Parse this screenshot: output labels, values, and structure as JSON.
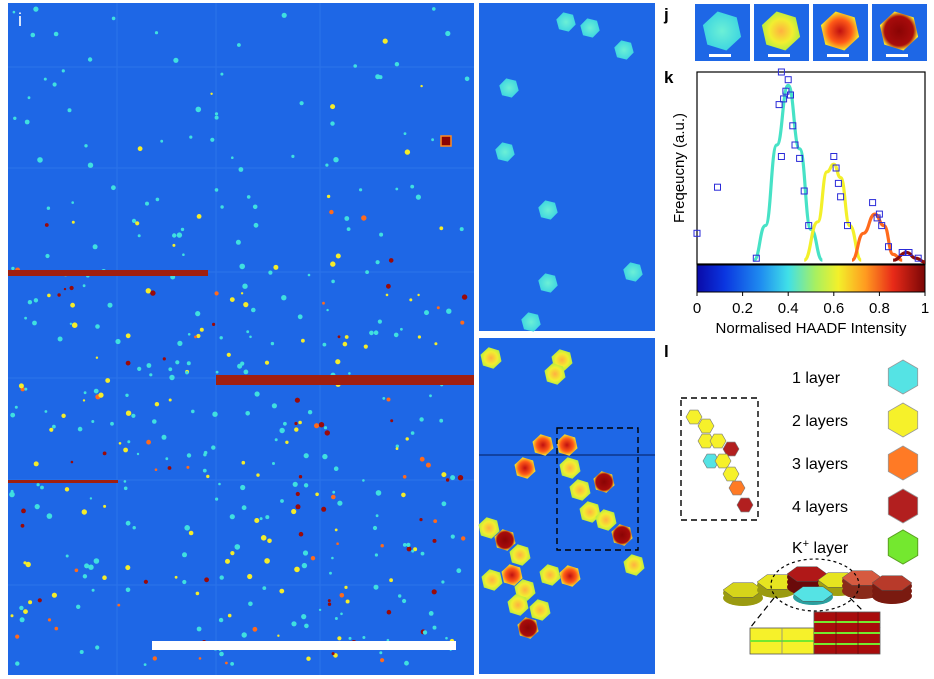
{
  "panels": {
    "i": "i",
    "j": "j",
    "k": "k",
    "l": "l"
  },
  "colors": {
    "map_background": "#1e67e6",
    "one_layer": "#55e3e4",
    "two_layers": "#f6f12a",
    "three_layers": "#ff7a25",
    "four_layers": "#b21f1f",
    "k_layer": "#74e82f"
  },
  "chart_data": {
    "type": "line",
    "ylabel": "Freqeucny (a.u.)",
    "xlabel": "Normalised HAADF Intensity",
    "xlim": [
      0,
      1
    ],
    "x_ticks": [
      "0",
      "0.2",
      "0.4",
      "0.6",
      "0.8",
      "1"
    ],
    "series": [
      {
        "color": "#47e2c6",
        "values": [
          [
            0.25,
            0.02
          ],
          [
            0.3,
            0.2
          ],
          [
            0.35,
            0.62
          ],
          [
            0.4,
            0.93
          ],
          [
            0.45,
            0.6
          ],
          [
            0.5,
            0.18
          ],
          [
            0.55,
            0.02
          ]
        ]
      },
      {
        "color": "#f3f02a",
        "values": [
          [
            0.47,
            0.02
          ],
          [
            0.53,
            0.22
          ],
          [
            0.57,
            0.48
          ],
          [
            0.6,
            0.52
          ],
          [
            0.63,
            0.45
          ],
          [
            0.67,
            0.2
          ],
          [
            0.72,
            0.02
          ]
        ]
      },
      {
        "color": "#ff6a1c",
        "values": [
          [
            0.68,
            0.02
          ],
          [
            0.73,
            0.16
          ],
          [
            0.78,
            0.26
          ],
          [
            0.82,
            0.2
          ],
          [
            0.86,
            0.05
          ],
          [
            0.9,
            0.02
          ]
        ]
      },
      {
        "color": "#8a0c0c",
        "values": [
          [
            0.86,
            0.02
          ],
          [
            0.92,
            0.06
          ],
          [
            0.96,
            0.03
          ],
          [
            1.0,
            0.01
          ]
        ]
      }
    ],
    "markers": [
      [
        0.0,
        0.16
      ],
      [
        0.09,
        0.4
      ],
      [
        0.26,
        0.03
      ],
      [
        0.36,
        0.83
      ],
      [
        0.37,
        0.56
      ],
      [
        0.38,
        0.86
      ],
      [
        0.39,
        0.9
      ],
      [
        0.4,
        0.96
      ],
      [
        0.41,
        0.88
      ],
      [
        0.42,
        0.72
      ],
      [
        0.43,
        0.62
      ],
      [
        0.45,
        0.55
      ],
      [
        0.47,
        0.38
      ],
      [
        0.49,
        0.2
      ],
      [
        0.6,
        0.56
      ],
      [
        0.61,
        0.5
      ],
      [
        0.62,
        0.42
      ],
      [
        0.63,
        0.35
      ],
      [
        0.66,
        0.2
      ],
      [
        0.79,
        0.24
      ],
      [
        0.8,
        0.26
      ],
      [
        0.81,
        0.2
      ],
      [
        0.77,
        0.32
      ],
      [
        0.84,
        0.09
      ],
      [
        0.9,
        0.06
      ],
      [
        0.93,
        0.06
      ],
      [
        0.97,
        0.03
      ],
      [
        0.37,
        1.0
      ]
    ]
  },
  "legend": {
    "items": [
      {
        "label": "1 layer",
        "color": "#55e3e4"
      },
      {
        "label": "2 layers",
        "color": "#f6f12a"
      },
      {
        "label": "3 layers",
        "color": "#ff7a25"
      },
      {
        "label": "4 layers",
        "color": "#b21f1f"
      }
    ],
    "k_label": "K",
    "k_sup": "+",
    "k_suffix": " layer"
  }
}
